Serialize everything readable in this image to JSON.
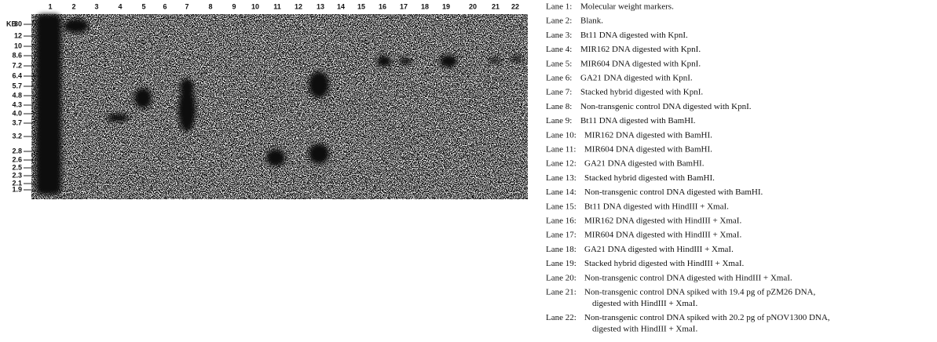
{
  "gel": {
    "size_label": "KB",
    "lanes": [
      "1",
      "2",
      "3",
      "4",
      "5",
      "6",
      "7",
      "8",
      "9",
      "10",
      "11",
      "12",
      "13",
      "14",
      "15",
      "16",
      "17",
      "18",
      "19",
      "20",
      "21",
      "22"
    ],
    "size_markers": [
      "30",
      "12",
      "10",
      "8.6",
      "7.2",
      "6.4",
      "5.7",
      "4.8",
      "4.3",
      "4.0",
      "3.7",
      "3.2",
      "2.8",
      "2.6",
      "2.5",
      "2.3",
      "2.1",
      "1.9"
    ]
  },
  "legend": [
    {
      "lane": "Lane 1:",
      "text": "Molecular weight markers."
    },
    {
      "lane": "Lane 2:",
      "text": "Blank."
    },
    {
      "lane": "Lane 3:",
      "text": "Bt11 DNA digested with KpnI."
    },
    {
      "lane": "Lane 4:",
      "text": "MIR162 DNA digested with KpnI."
    },
    {
      "lane": "Lane 5:",
      "text": "MIR604 DNA digested with KpnI."
    },
    {
      "lane": "Lane 6:",
      "text": "GA21 DNA digested with KpnI."
    },
    {
      "lane": "Lane 7:",
      "text": "Stacked hybrid digested with KpnI."
    },
    {
      "lane": "Lane 8:",
      "text": "Non-transgenic control DNA digested with KpnI."
    },
    {
      "lane": "Lane 9:",
      "text": "Bt11 DNA digested with BamHI."
    },
    {
      "lane": "Lane 10:",
      "text": "MIR162 DNA digested with BamHI."
    },
    {
      "lane": "Lane 11:",
      "text": "MIR604 DNA digested with BamHI."
    },
    {
      "lane": "Lane 12:",
      "text": "GA21 DNA digested with BamHI."
    },
    {
      "lane": "Lane 13:",
      "text": "Stacked hybrid digested with BamHI."
    },
    {
      "lane": "Lane 14:",
      "text": "Non-transgenic control DNA digested with BamHI."
    },
    {
      "lane": "Lane 15:",
      "text": "Bt11 DNA digested with HindIII + XmaI."
    },
    {
      "lane": "Lane 16:",
      "text": "MIR162 DNA digested with HindIII + XmaI."
    },
    {
      "lane": "Lane 17:",
      "text": "MIR604 DNA digested with HindIII + XmaI."
    },
    {
      "lane": "Lane 18:",
      "text": "GA21 DNA digested with HindIII + XmaI."
    },
    {
      "lane": "Lane 19:",
      "text": "Stacked hybrid digested with HindIII + XmaI."
    },
    {
      "lane": "Lane 20:",
      "text": "Non-transgenic control DNA digested with HindIII + XmaI."
    },
    {
      "lane": "Lane 21:",
      "text": "Non-transgenic control DNA spiked with 19.4 pg of pZM26 DNA,",
      "continuation": "digested with HindIII + XmaI."
    },
    {
      "lane": "Lane 22:",
      "text": "Non-transgenic control DNA spiked with 20.2 pg of pNOV1300 DNA,",
      "continuation": "digested with HindIII + XmaI."
    }
  ]
}
